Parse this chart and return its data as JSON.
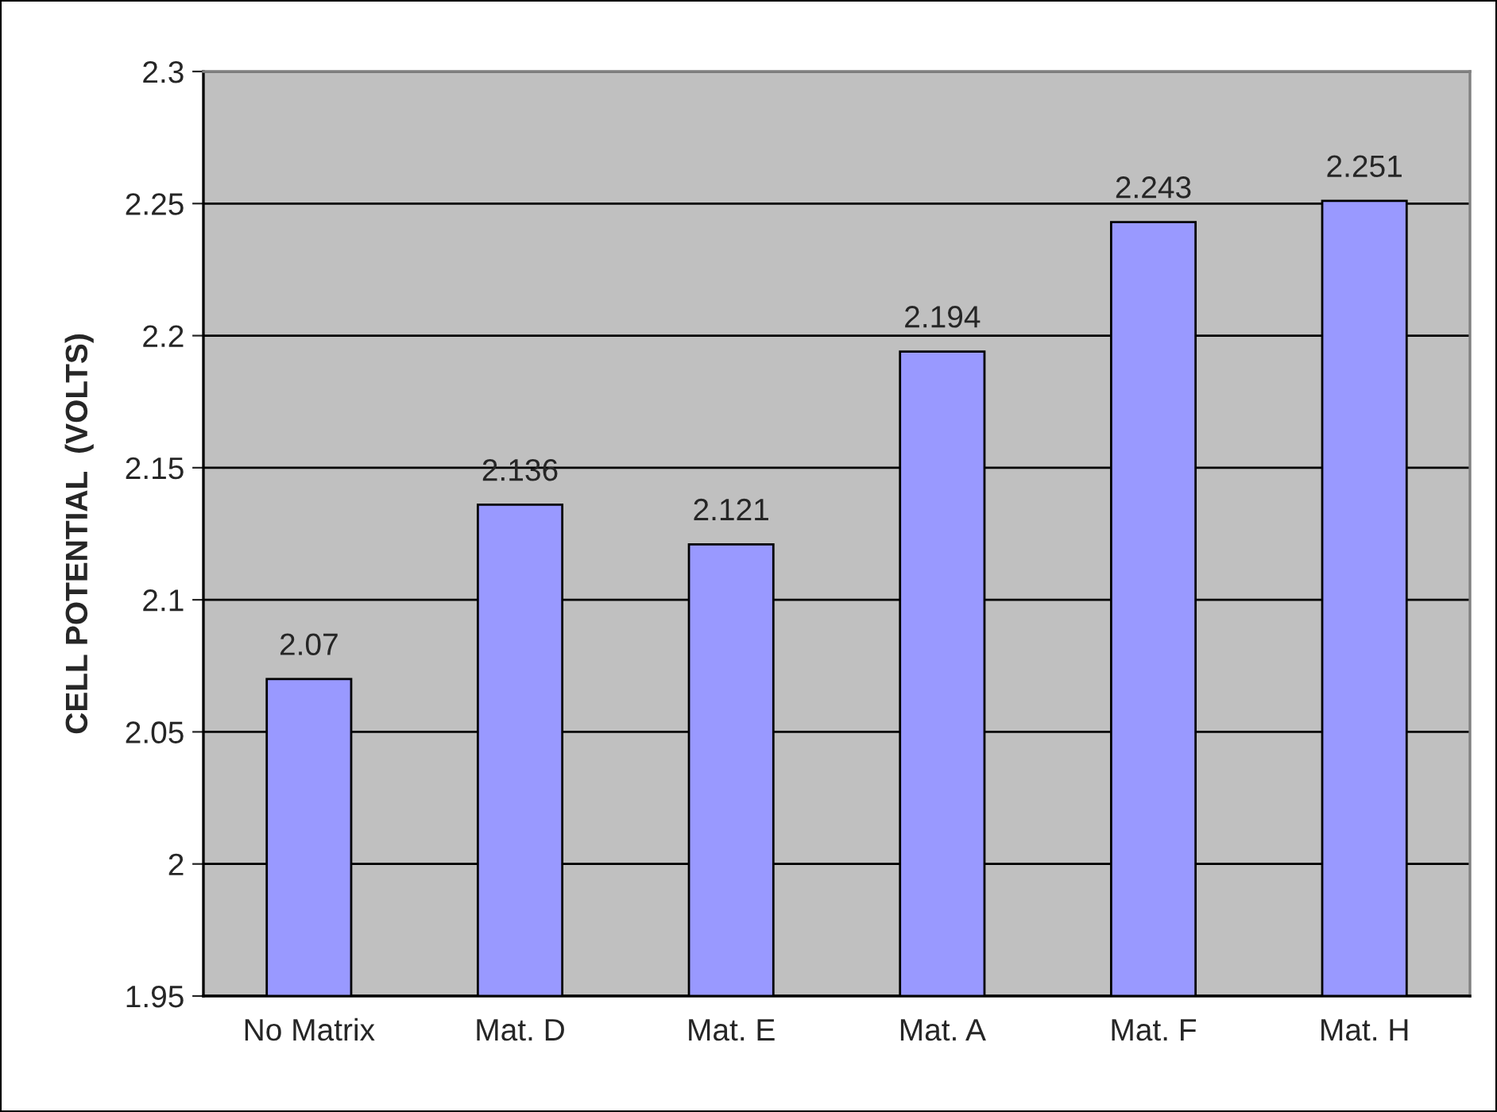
{
  "chart_data": {
    "type": "bar",
    "ylabel": "CELL POTENTIAL  (VOLTS)",
    "categories": [
      "No Matrix",
      "Mat. D",
      "Mat. E",
      "Mat. A",
      "Mat. F",
      "Mat. H"
    ],
    "values": [
      2.07,
      2.136,
      2.121,
      2.194,
      2.243,
      2.251
    ],
    "color": "#9999ff",
    "ylim": [
      1.95,
      2.3
    ],
    "yticks": [
      1.95,
      2,
      2.05,
      2.1,
      2.15,
      2.2,
      2.25,
      2.3
    ],
    "grid": "y",
    "data_labels": true
  }
}
